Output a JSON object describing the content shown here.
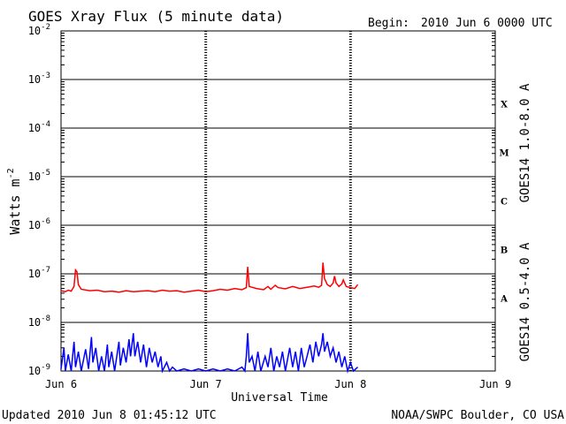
{
  "chart_data": {
    "type": "line",
    "title": "GOES Xray Flux (5 minute data)",
    "begin_label": "Begin:",
    "begin_value": "2010 Jun 6 0000 UTC",
    "ylabel_base": "Watts m",
    "ylabel_exp": "-2",
    "xlabel": "Universal Time",
    "yscale": "log",
    "ylim": [
      1e-09,
      0.01
    ],
    "xlim_days": [
      0,
      3
    ],
    "x_ticks": [
      {
        "day": 0,
        "label": "Jun 6"
      },
      {
        "day": 1,
        "label": "Jun 7"
      },
      {
        "day": 2,
        "label": "Jun 8"
      },
      {
        "day": 3,
        "label": "Jun 9"
      }
    ],
    "y_ticks": [
      {
        "exp": -2,
        "base": "10",
        "sup": "-2"
      },
      {
        "exp": -3,
        "base": "10",
        "sup": "-3"
      },
      {
        "exp": -4,
        "base": "10",
        "sup": "-4"
      },
      {
        "exp": -5,
        "base": "10",
        "sup": "-5"
      },
      {
        "exp": -6,
        "base": "10",
        "sup": "-6"
      },
      {
        "exp": -7,
        "base": "10",
        "sup": "-7"
      },
      {
        "exp": -8,
        "base": "10",
        "sup": "-8"
      },
      {
        "exp": -9,
        "base": "10",
        "sup": "-9"
      }
    ],
    "flare_classes": [
      {
        "label": "X",
        "low_exp": -4
      },
      {
        "label": "M",
        "low_exp": -5
      },
      {
        "label": "C",
        "low_exp": -6
      },
      {
        "label": "B",
        "low_exp": -7
      },
      {
        "label": "A",
        "low_exp": -8
      }
    ],
    "grid": true,
    "series": [
      {
        "name": "GOES14 1.0-8.0 A",
        "color": "#ff0000",
        "points": [
          [
            0.0,
            4.5e-08
          ],
          [
            0.03,
            4.3e-08
          ],
          [
            0.05,
            4.6e-08
          ],
          [
            0.07,
            4.4e-08
          ],
          [
            0.09,
            5.5e-08
          ],
          [
            0.1,
            1.2e-07
          ],
          [
            0.11,
            1.1e-07
          ],
          [
            0.12,
            6e-08
          ],
          [
            0.14,
            4.8e-08
          ],
          [
            0.2,
            4.5e-08
          ],
          [
            0.25,
            4.6e-08
          ],
          [
            0.3,
            4.3e-08
          ],
          [
            0.35,
            4.4e-08
          ],
          [
            0.4,
            4.2e-08
          ],
          [
            0.45,
            4.5e-08
          ],
          [
            0.5,
            4.3e-08
          ],
          [
            0.55,
            4.4e-08
          ],
          [
            0.6,
            4.5e-08
          ],
          [
            0.65,
            4.3e-08
          ],
          [
            0.7,
            4.6e-08
          ],
          [
            0.75,
            4.4e-08
          ],
          [
            0.8,
            4.5e-08
          ],
          [
            0.85,
            4.2e-08
          ],
          [
            0.9,
            4.4e-08
          ],
          [
            0.95,
            4.6e-08
          ],
          [
            1.0,
            4.3e-08
          ],
          [
            1.05,
            4.5e-08
          ],
          [
            1.1,
            4.8e-08
          ],
          [
            1.15,
            4.6e-08
          ],
          [
            1.2,
            5e-08
          ],
          [
            1.25,
            4.7e-08
          ],
          [
            1.28,
            5.2e-08
          ],
          [
            1.29,
            1.4e-07
          ],
          [
            1.3,
            5.5e-08
          ],
          [
            1.35,
            5e-08
          ],
          [
            1.4,
            4.7e-08
          ],
          [
            1.43,
            5.5e-08
          ],
          [
            1.45,
            4.8e-08
          ],
          [
            1.48,
            5.8e-08
          ],
          [
            1.5,
            5.2e-08
          ],
          [
            1.55,
            4.9e-08
          ],
          [
            1.6,
            5.5e-08
          ],
          [
            1.65,
            5e-08
          ],
          [
            1.7,
            5.3e-08
          ],
          [
            1.75,
            5.6e-08
          ],
          [
            1.78,
            5.3e-08
          ],
          [
            1.8,
            5.8e-08
          ],
          [
            1.81,
            1.7e-07
          ],
          [
            1.82,
            8e-08
          ],
          [
            1.84,
            6e-08
          ],
          [
            1.86,
            5.5e-08
          ],
          [
            1.88,
            6.5e-08
          ],
          [
            1.89,
            9e-08
          ],
          [
            1.9,
            6.5e-08
          ],
          [
            1.92,
            5.5e-08
          ],
          [
            1.94,
            6.2e-08
          ],
          [
            1.95,
            7.5e-08
          ],
          [
            1.97,
            5.5e-08
          ],
          [
            2.0,
            5.2e-08
          ],
          [
            2.03,
            5e-08
          ],
          [
            2.05,
            6e-08
          ]
        ]
      },
      {
        "name": "GOES14 0.5-4.0 A",
        "color": "#0000ff",
        "points": [
          [
            0.0,
            1.1e-09
          ],
          [
            0.02,
            3e-09
          ],
          [
            0.03,
            1e-09
          ],
          [
            0.05,
            2.2e-09
          ],
          [
            0.07,
            1e-09
          ],
          [
            0.09,
            4e-09
          ],
          [
            0.1,
            1.2e-09
          ],
          [
            0.12,
            2.5e-09
          ],
          [
            0.14,
            1e-09
          ],
          [
            0.17,
            2.8e-09
          ],
          [
            0.19,
            1.1e-09
          ],
          [
            0.21,
            5e-09
          ],
          [
            0.22,
            1.5e-09
          ],
          [
            0.24,
            3e-09
          ],
          [
            0.26,
            1e-09
          ],
          [
            0.28,
            2e-09
          ],
          [
            0.3,
            1e-09
          ],
          [
            0.32,
            3.5e-09
          ],
          [
            0.33,
            1.2e-09
          ],
          [
            0.35,
            2.5e-09
          ],
          [
            0.37,
            1e-09
          ],
          [
            0.4,
            4e-09
          ],
          [
            0.41,
            1.3e-09
          ],
          [
            0.43,
            3e-09
          ],
          [
            0.45,
            1.5e-09
          ],
          [
            0.47,
            4.5e-09
          ],
          [
            0.48,
            2e-09
          ],
          [
            0.5,
            6e-09
          ],
          [
            0.51,
            2e-09
          ],
          [
            0.53,
            4e-09
          ],
          [
            0.55,
            1.5e-09
          ],
          [
            0.57,
            3.5e-09
          ],
          [
            0.59,
            1.2e-09
          ],
          [
            0.61,
            3e-09
          ],
          [
            0.63,
            1.5e-09
          ],
          [
            0.65,
            2.5e-09
          ],
          [
            0.67,
            1.2e-09
          ],
          [
            0.69,
            2e-09
          ],
          [
            0.7,
            1e-09
          ],
          [
            0.73,
            1.5e-09
          ],
          [
            0.75,
            1e-09
          ],
          [
            0.77,
            1.2e-09
          ],
          [
            0.8,
            1e-09
          ],
          [
            0.85,
            1.1e-09
          ],
          [
            0.9,
            1e-09
          ],
          [
            0.95,
            1.1e-09
          ],
          [
            1.0,
            1e-09
          ],
          [
            1.05,
            1.1e-09
          ],
          [
            1.1,
            1e-09
          ],
          [
            1.15,
            1.1e-09
          ],
          [
            1.2,
            1e-09
          ],
          [
            1.25,
            1.2e-09
          ],
          [
            1.27,
            1e-09
          ],
          [
            1.28,
            2e-09
          ],
          [
            1.29,
            6e-09
          ],
          [
            1.3,
            1.5e-09
          ],
          [
            1.32,
            2e-09
          ],
          [
            1.34,
            1e-09
          ],
          [
            1.36,
            2.5e-09
          ],
          [
            1.38,
            1e-09
          ],
          [
            1.41,
            2e-09
          ],
          [
            1.43,
            1.2e-09
          ],
          [
            1.45,
            3e-09
          ],
          [
            1.47,
            1e-09
          ],
          [
            1.49,
            2e-09
          ],
          [
            1.51,
            1.2e-09
          ],
          [
            1.53,
            2.5e-09
          ],
          [
            1.55,
            1e-09
          ],
          [
            1.58,
            3e-09
          ],
          [
            1.6,
            1.2e-09
          ],
          [
            1.62,
            2.5e-09
          ],
          [
            1.64,
            1e-09
          ],
          [
            1.66,
            3e-09
          ],
          [
            1.68,
            1.2e-09
          ],
          [
            1.7,
            2e-09
          ],
          [
            1.72,
            3.5e-09
          ],
          [
            1.74,
            1.5e-09
          ],
          [
            1.76,
            4e-09
          ],
          [
            1.78,
            2e-09
          ],
          [
            1.8,
            3.5e-09
          ],
          [
            1.81,
            6e-09
          ],
          [
            1.82,
            2.5e-09
          ],
          [
            1.84,
            4e-09
          ],
          [
            1.86,
            2e-09
          ],
          [
            1.88,
            3e-09
          ],
          [
            1.9,
            1.5e-09
          ],
          [
            1.92,
            2.5e-09
          ],
          [
            1.94,
            1.2e-09
          ],
          [
            1.96,
            2e-09
          ],
          [
            1.98,
            1e-09
          ],
          [
            2.0,
            1.5e-09
          ],
          [
            2.02,
            1e-09
          ],
          [
            2.05,
            1.2e-09
          ]
        ]
      }
    ]
  },
  "footer": {
    "updated": "Updated 2010 Jun  8 01:45:12 UTC",
    "credit": "NOAA/SWPC Boulder, CO USA"
  }
}
